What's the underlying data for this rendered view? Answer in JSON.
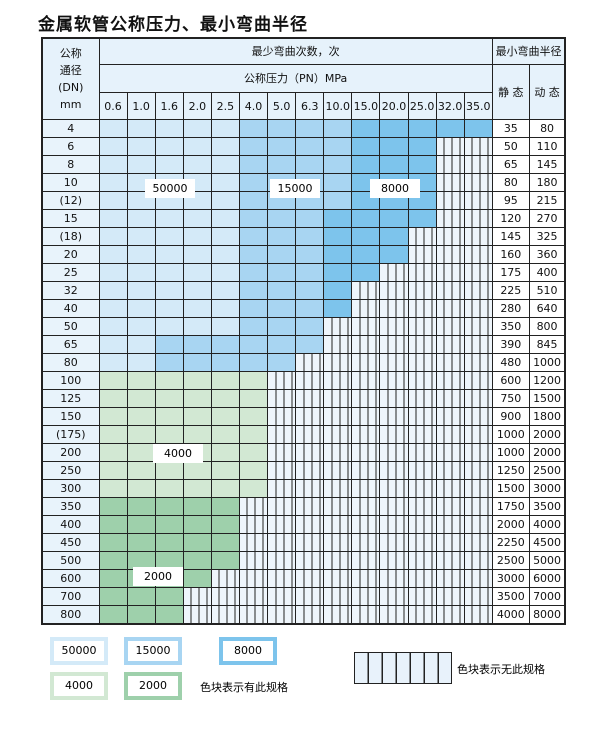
{
  "title": "金属软管公称压力、最小弯曲半径",
  "header": {
    "dn_label": [
      "公称",
      "通径",
      "(DN)",
      "mm"
    ],
    "bend_count": "最少弯曲次数，次",
    "pressure": "公称压力（PN）MPa",
    "min_radius": "最小弯曲半径",
    "static": "静 态",
    "dynamic": "动 态",
    "pressures": [
      "0.6",
      "1.0",
      "1.6",
      "2.0",
      "2.5",
      "4.0",
      "5.0",
      "6.3",
      "10.0",
      "15.0",
      "20.0",
      "25.0",
      "32.0",
      "35.0"
    ]
  },
  "colors": {
    "A": "#d4eaf8",
    "B": "#a8d5f2",
    "C": "#7dc4ec",
    "D": "#d2e8d3",
    "E": "#9ed0ab"
  },
  "rows": [
    {
      "dn": "4",
      "static": "35",
      "dynamic": "80",
      "cells": "AAAAABBBBCCCCC"
    },
    {
      "dn": "6",
      "static": "50",
      "dynamic": "110",
      "cells": "AAAAABBBBCCC--"
    },
    {
      "dn": "8",
      "static": "65",
      "dynamic": "145",
      "cells": "AAAAABBBBCCC--"
    },
    {
      "dn": "10",
      "static": "80",
      "dynamic": "180",
      "cells": "AAAAABBBBCCC--"
    },
    {
      "dn": "(12)",
      "static": "95",
      "dynamic": "215",
      "cells": "AAAAABBBBCCC--"
    },
    {
      "dn": "15",
      "static": "120",
      "dynamic": "270",
      "cells": "AAAAABBBCCCC--"
    },
    {
      "dn": "(18)",
      "static": "145",
      "dynamic": "325",
      "cells": "AAAAABBBCCC---"
    },
    {
      "dn": "20",
      "static": "160",
      "dynamic": "360",
      "cells": "AAAAABBBCCC---"
    },
    {
      "dn": "25",
      "static": "175",
      "dynamic": "400",
      "cells": "AAAAABBBCC----"
    },
    {
      "dn": "32",
      "static": "225",
      "dynamic": "510",
      "cells": "AAAAABBBC-----"
    },
    {
      "dn": "40",
      "static": "280",
      "dynamic": "640",
      "cells": "AAAAABBBC-----"
    },
    {
      "dn": "50",
      "static": "350",
      "dynamic": "800",
      "cells": "AAAAABBB------"
    },
    {
      "dn": "65",
      "static": "390",
      "dynamic": "845",
      "cells": "AABBBBBB------"
    },
    {
      "dn": "80",
      "static": "480",
      "dynamic": "1000",
      "cells": "AABBBBB-------"
    },
    {
      "dn": "100",
      "static": "600",
      "dynamic": "1200",
      "cells": "DDDDDD--------"
    },
    {
      "dn": "125",
      "static": "750",
      "dynamic": "1500",
      "cells": "DDDDDD--------"
    },
    {
      "dn": "150",
      "static": "900",
      "dynamic": "1800",
      "cells": "DDDDDD--------"
    },
    {
      "dn": "(175)",
      "static": "1000",
      "dynamic": "2000",
      "cells": "DDDDDD--------"
    },
    {
      "dn": "200",
      "static": "1000",
      "dynamic": "2000",
      "cells": "DDDDDD--------"
    },
    {
      "dn": "250",
      "static": "1250",
      "dynamic": "2500",
      "cells": "DDDDDD--------"
    },
    {
      "dn": "300",
      "static": "1500",
      "dynamic": "3000",
      "cells": "DDDDDD--------"
    },
    {
      "dn": "350",
      "static": "1750",
      "dynamic": "3500",
      "cells": "EEEEE---------"
    },
    {
      "dn": "400",
      "static": "2000",
      "dynamic": "4000",
      "cells": "EEEEE---------"
    },
    {
      "dn": "450",
      "static": "2250",
      "dynamic": "4500",
      "cells": "EEEEE---------"
    },
    {
      "dn": "500",
      "static": "2500",
      "dynamic": "5000",
      "cells": "EEEEE---------"
    },
    {
      "dn": "600",
      "static": "3000",
      "dynamic": "6000",
      "cells": "EEEE----------"
    },
    {
      "dn": "700",
      "static": "3500",
      "dynamic": "7000",
      "cells": "EEE-----------"
    },
    {
      "dn": "800",
      "static": "4000",
      "dynamic": "8000",
      "cells": "EEE-----------"
    }
  ],
  "region_labels": {
    "A": "50000",
    "B": "15000",
    "C": "8000",
    "D": "4000",
    "E": "2000"
  },
  "legend": {
    "items": [
      "50000",
      "15000",
      "8000",
      "4000",
      "2000"
    ],
    "has_spec": "色块表示有此规格",
    "no_spec": "色块表示无此规格"
  }
}
